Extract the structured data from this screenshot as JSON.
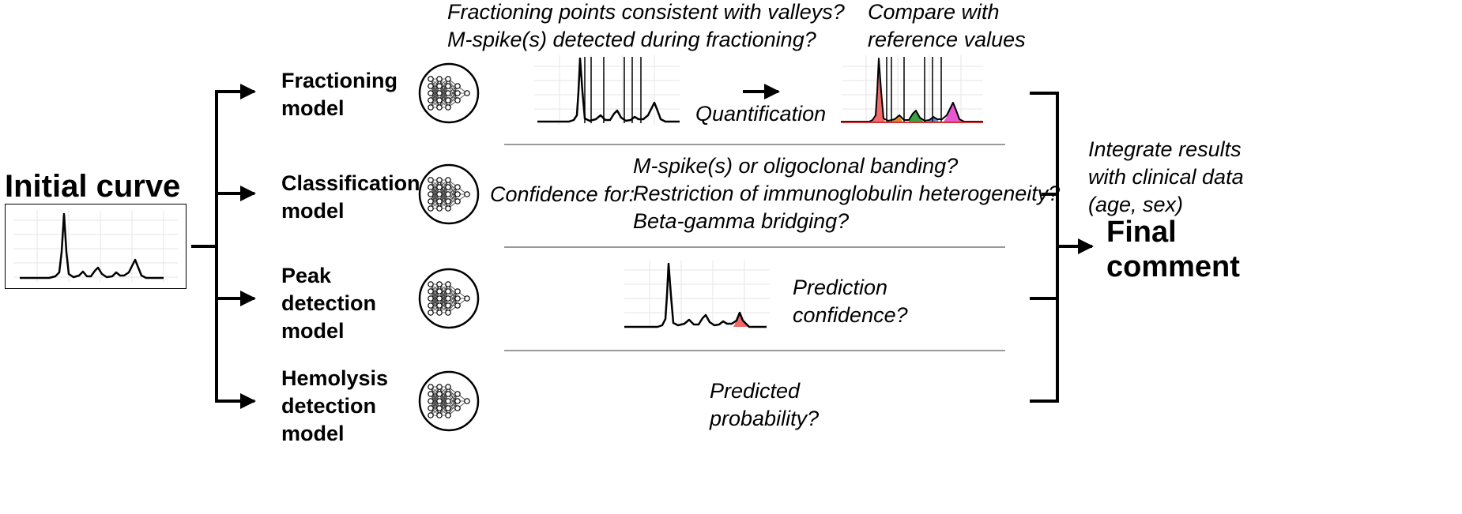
{
  "initial_curve": {
    "title": "Initial curve"
  },
  "models": [
    {
      "line1": "Fractioning",
      "line2": "model",
      "line3": ""
    },
    {
      "line1": "Classification",
      "line2": "model",
      "line3": ""
    },
    {
      "line1": "Peak",
      "line2": "detection",
      "line3": "model"
    },
    {
      "line1": "Hemolysis",
      "line2": "detection",
      "line3": "model"
    }
  ],
  "fractioning": {
    "question1": "Fractioning points consistent with valleys?",
    "question2": "M-spike(s) detected during fractioning?",
    "compare1": "Compare with",
    "compare2": "reference values",
    "quantification": "Quantification"
  },
  "classification": {
    "prefix": "Confidence for:",
    "items": [
      "M-spike(s) or oligoclonal banding?",
      "Restriction of immunoglobulin heterogeneity?",
      "Beta-gamma bridging?"
    ]
  },
  "peak": {
    "line1": "Prediction",
    "line2": "confidence?"
  },
  "hemolysis": {
    "line1": "Predicted",
    "line2": "probability?"
  },
  "integration": {
    "line1": "Integrate results",
    "line2": "with clinical data",
    "line3": "(age, sex)"
  },
  "final": {
    "line1": "Final",
    "line2": "comment"
  },
  "colors": {
    "fraction_fills": [
      "#f26b6b",
      "#e08a2a",
      "#3aa040",
      "#5a8fd0",
      "#e858d0"
    ],
    "peak_fill": "#f26b6b"
  }
}
